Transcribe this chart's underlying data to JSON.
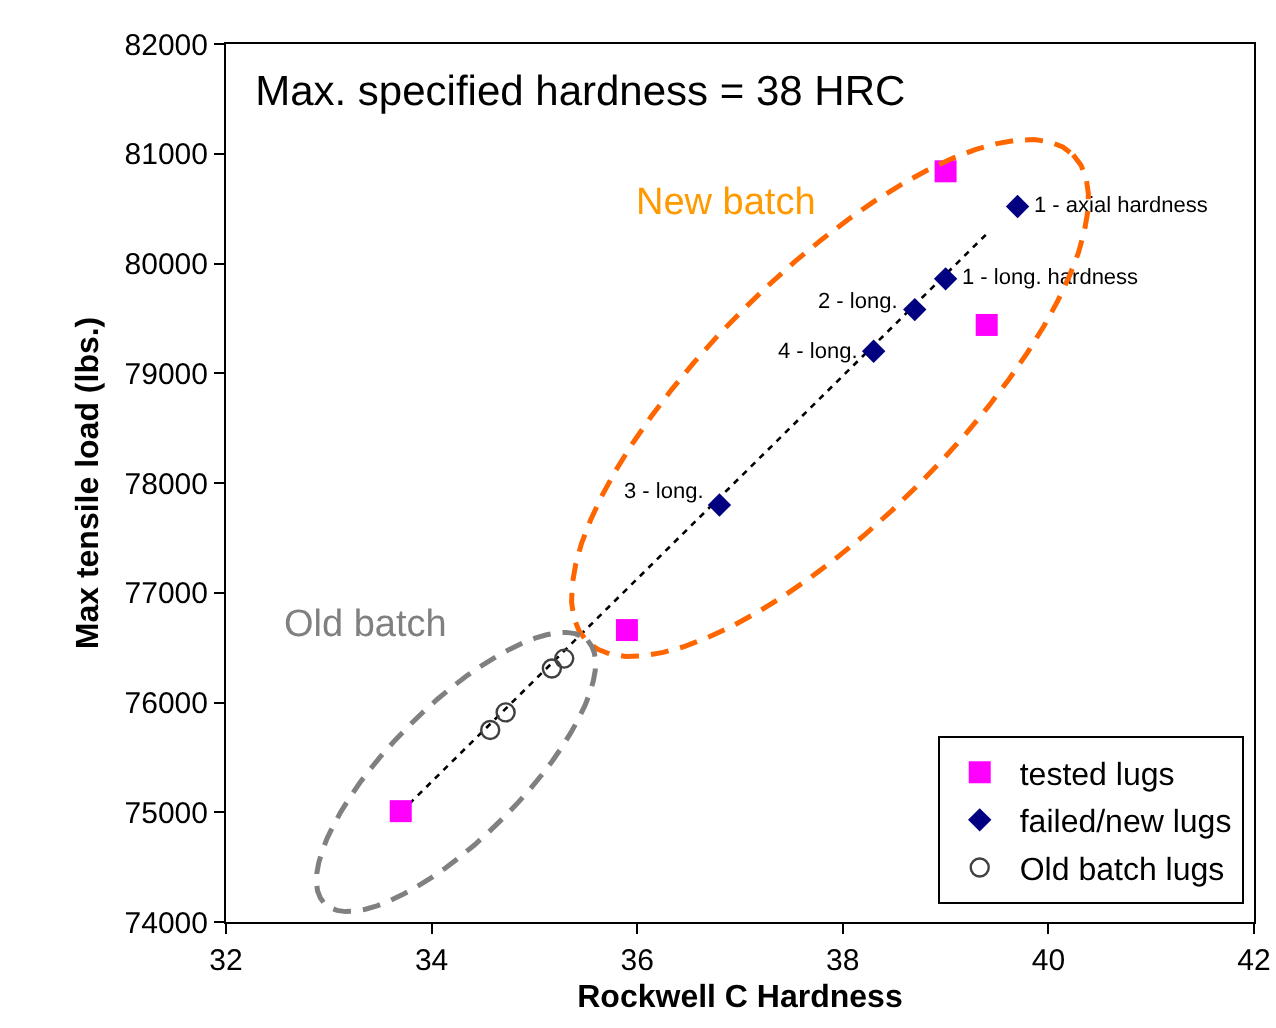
{
  "chart_data": {
    "type": "scatter",
    "title": "Max. specified hardness = 38 HRC",
    "xlabel": "Rockwell C Hardness",
    "ylabel": "Max tensile load (lbs.)",
    "xlim": [
      32,
      42
    ],
    "xticks": [
      32,
      34,
      36,
      38,
      40,
      42
    ],
    "ylim": [
      74000,
      82000
    ],
    "yticks": [
      74000,
      75000,
      76000,
      77000,
      78000,
      79000,
      80000,
      81000,
      82000
    ],
    "grid": false,
    "legend": "bottom right",
    "series": [
      {
        "type": "line",
        "x": [
          33.7,
          39.4
        ],
        "values": [
          75000,
          80270
        ],
        "color": "#000000",
        "line_style": "dotted",
        "marker": "none"
      },
      {
        "name": "tested lugs",
        "x": [
          39.0,
          39.4,
          35.9,
          33.7
        ],
        "values": [
          80840,
          79440,
          76660,
          75010
        ],
        "color": "#ff00ff",
        "marker": "square"
      },
      {
        "name": "failed/new lugs",
        "x": [
          39.7,
          39.0,
          38.7,
          38.3,
          36.8
        ],
        "values": [
          80520,
          79860,
          79580,
          79200,
          77800
        ],
        "color": "#000080",
        "marker": "diamond"
      },
      {
        "name": "Old batch lugs",
        "x": [
          34.57,
          34.72,
          35.17,
          35.29
        ],
        "values": [
          75750,
          75910,
          76310,
          76400
        ],
        "color": "#404040",
        "marker": "circle-open"
      }
    ],
    "annotations": [
      {
        "text": "1 - axial hardness",
        "x": 39.7,
        "y": 80520
      },
      {
        "text": "1 - long. hardness",
        "x": 39.0,
        "y": 79860
      },
      {
        "text": "2 - long.",
        "x": 38.7,
        "y": 79580
      },
      {
        "text": "4 - long.",
        "x": 38.3,
        "y": 79200
      },
      {
        "text": "3 - long.",
        "x": 36.8,
        "y": 77800
      },
      "New batch",
      "Old batch"
    ]
  }
}
